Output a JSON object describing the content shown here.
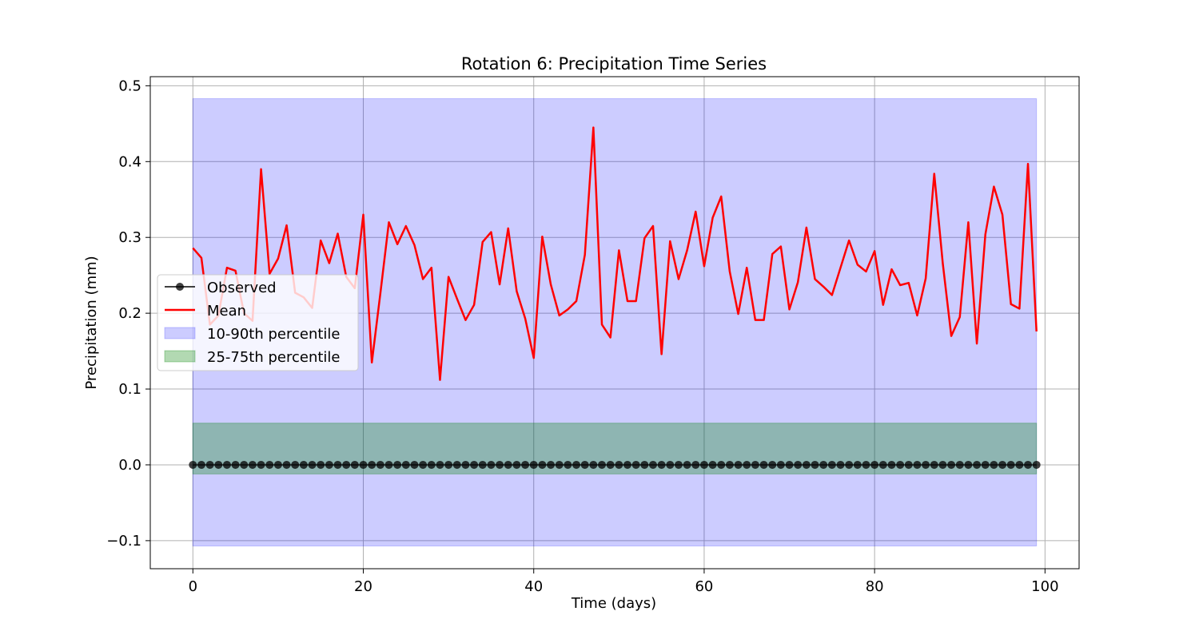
{
  "chart_data": {
    "type": "line",
    "title": "Rotation 6: Precipitation Time Series",
    "xlabel": "Time (days)",
    "ylabel": "Precipitation (mm)",
    "xlim": [
      -5,
      104
    ],
    "ylim": [
      -0.137,
      0.512
    ],
    "xticks": [
      0,
      20,
      40,
      60,
      80,
      100
    ],
    "xtick_labels": [
      "0",
      "20",
      "40",
      "60",
      "80",
      "100"
    ],
    "yticks": [
      -0.1,
      0.0,
      0.1,
      0.2,
      0.3,
      0.4,
      0.5
    ],
    "ytick_labels": [
      "−0.1",
      "0.0",
      "0.1",
      "0.2",
      "0.3",
      "0.4",
      "0.5"
    ],
    "grid": true,
    "legend_position": "center-left",
    "colors": {
      "observed": "#000000",
      "mean": "#ff0000",
      "band_10_90": "#0000ff",
      "band_25_75": "#008000",
      "grid": "#b0b0b0"
    },
    "x": [
      0,
      1,
      2,
      3,
      4,
      5,
      6,
      7,
      8,
      9,
      10,
      11,
      12,
      13,
      14,
      15,
      16,
      17,
      18,
      19,
      20,
      21,
      22,
      23,
      24,
      25,
      26,
      27,
      28,
      29,
      30,
      31,
      32,
      33,
      34,
      35,
      36,
      37,
      38,
      39,
      40,
      41,
      42,
      43,
      44,
      45,
      46,
      47,
      48,
      49,
      50,
      51,
      52,
      53,
      54,
      55,
      56,
      57,
      58,
      59,
      60,
      61,
      62,
      63,
      64,
      65,
      66,
      67,
      68,
      69,
      70,
      71,
      72,
      73,
      74,
      75,
      76,
      77,
      78,
      79,
      80,
      81,
      82,
      83,
      84,
      85,
      86,
      87,
      88,
      89,
      90,
      91,
      92,
      93,
      94,
      95,
      96,
      97,
      98,
      99
    ],
    "series": [
      {
        "name": "Observed",
        "kind": "line-marker",
        "values": [
          0,
          0,
          0,
          0,
          0,
          0,
          0,
          0,
          0,
          0,
          0,
          0,
          0,
          0,
          0,
          0,
          0,
          0,
          0,
          0,
          0,
          0,
          0,
          0,
          0,
          0,
          0,
          0,
          0,
          0,
          0,
          0,
          0,
          0,
          0,
          0,
          0,
          0,
          0,
          0,
          0,
          0,
          0,
          0,
          0,
          0,
          0,
          0,
          0,
          0,
          0,
          0,
          0,
          0,
          0,
          0,
          0,
          0,
          0,
          0,
          0,
          0,
          0,
          0,
          0,
          0,
          0,
          0,
          0,
          0,
          0,
          0,
          0,
          0,
          0,
          0,
          0,
          0,
          0,
          0,
          0,
          0,
          0,
          0,
          0,
          0,
          0,
          0,
          0,
          0,
          0,
          0,
          0,
          0,
          0,
          0,
          0,
          0,
          0,
          0
        ]
      },
      {
        "name": "Mean",
        "kind": "line",
        "values": [
          0.286,
          0.273,
          0.185,
          0.197,
          0.26,
          0.256,
          0.2,
          0.19,
          0.39,
          0.252,
          0.272,
          0.316,
          0.227,
          0.221,
          0.207,
          0.296,
          0.266,
          0.305,
          0.248,
          0.233,
          0.33,
          0.135,
          0.226,
          0.32,
          0.291,
          0.315,
          0.29,
          0.245,
          0.26,
          0.112,
          0.248,
          0.219,
          0.191,
          0.211,
          0.294,
          0.307,
          0.238,
          0.312,
          0.229,
          0.193,
          0.141,
          0.301,
          0.238,
          0.197,
          0.205,
          0.216,
          0.277,
          0.445,
          0.185,
          0.168,
          0.283,
          0.216,
          0.216,
          0.299,
          0.315,
          0.146,
          0.295,
          0.245,
          0.283,
          0.334,
          0.262,
          0.326,
          0.354,
          0.255,
          0.199,
          0.26,
          0.191,
          0.191,
          0.278,
          0.288,
          0.205,
          0.241,
          0.313,
          0.245,
          0.235,
          0.224,
          0.26,
          0.296,
          0.264,
          0.255,
          0.282,
          0.211,
          0.258,
          0.237,
          0.24,
          0.197,
          0.246,
          0.384,
          0.266,
          0.17,
          0.195,
          0.32,
          0.16,
          0.304,
          0.367,
          0.33,
          0.212,
          0.206,
          0.397,
          0.176
        ]
      }
    ],
    "bands": [
      {
        "name": "10-90th percentile",
        "x_start": 0,
        "x_end": 99,
        "lower": -0.107,
        "upper": 0.483
      },
      {
        "name": "25-75th percentile",
        "x_start": 0,
        "x_end": 99,
        "lower": -0.012,
        "upper": 0.055
      }
    ]
  }
}
